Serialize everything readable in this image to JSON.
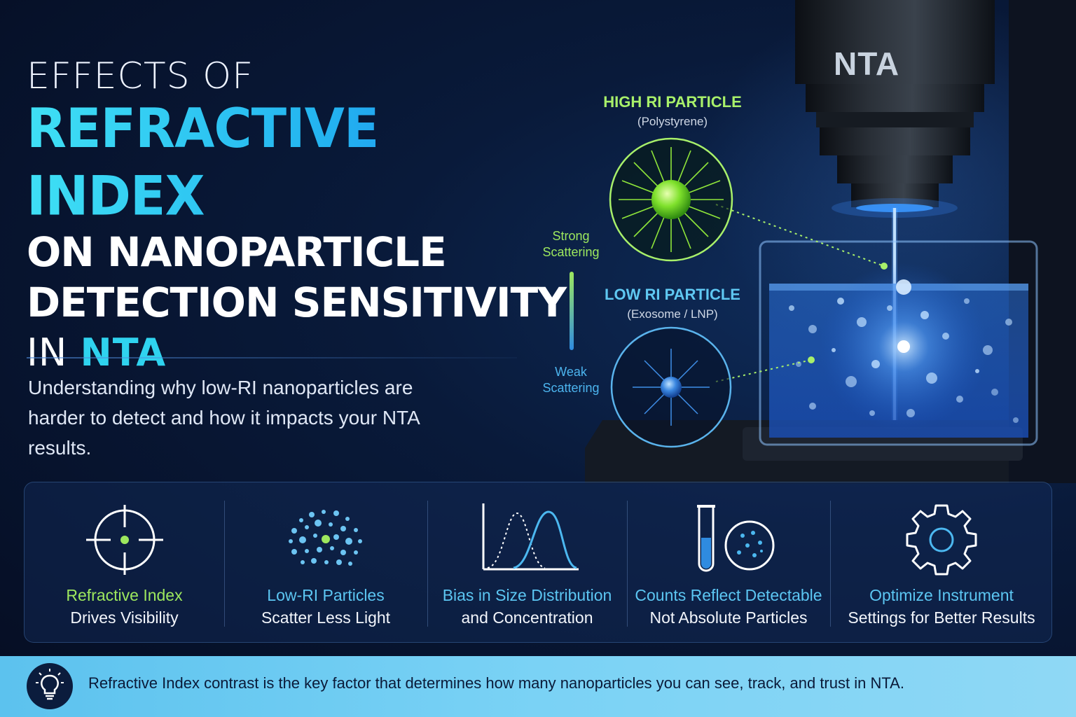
{
  "title": {
    "line1": "EFFECTS OF",
    "line2": "REFRACTIVE INDEX",
    "line3": "ON NANOPARTICLE",
    "line4": "DETECTION SENSITIVITY",
    "line5_prefix": "IN ",
    "line5_accent": "NTA"
  },
  "subtitle": "Understanding why low-RI nanoparticles are harder to detect and how it impacts your NTA results.",
  "instrument": {
    "label": "NTA"
  },
  "particles": {
    "high": {
      "title": "HIGH RI PARTICLE",
      "subtitle": "(Polystyrene)",
      "color": "#8fe63a"
    },
    "low": {
      "title": "LOW RI PARTICLE",
      "subtitle": "(Exosome / LNP)",
      "color": "#3f8fe8"
    }
  },
  "scale": {
    "strong": "Strong Scattering",
    "weak": "Weak Scattering"
  },
  "points": [
    {
      "icon": "crosshair-icon",
      "title": "Refractive Index",
      "text": "Drives Visibility",
      "title_color": "#9de85e"
    },
    {
      "icon": "particle-cloud-icon",
      "title": "Low-RI Particles",
      "text": "Scatter Less Light",
      "title_color": "#5cc6f2"
    },
    {
      "icon": "distribution-curve-icon",
      "title": "Bias in Size Distribution",
      "text": "and Concentration",
      "title_color": "#5cc6f2"
    },
    {
      "icon": "test-tube-icon",
      "title": "Counts Reflect Detectable",
      "text": "Not Absolute Particles",
      "title_color": "#5cc6f2"
    },
    {
      "icon": "gear-icon",
      "title": "Optimize Instrument",
      "text": "Settings for Better Results",
      "title_color": "#5cc6f2"
    }
  ],
  "footer": {
    "icon": "lightbulb-icon",
    "bold": "Refractive Index contrast",
    "text": " is the key factor that determines how many nanoparticles you can see, track, and trust in NTA."
  }
}
